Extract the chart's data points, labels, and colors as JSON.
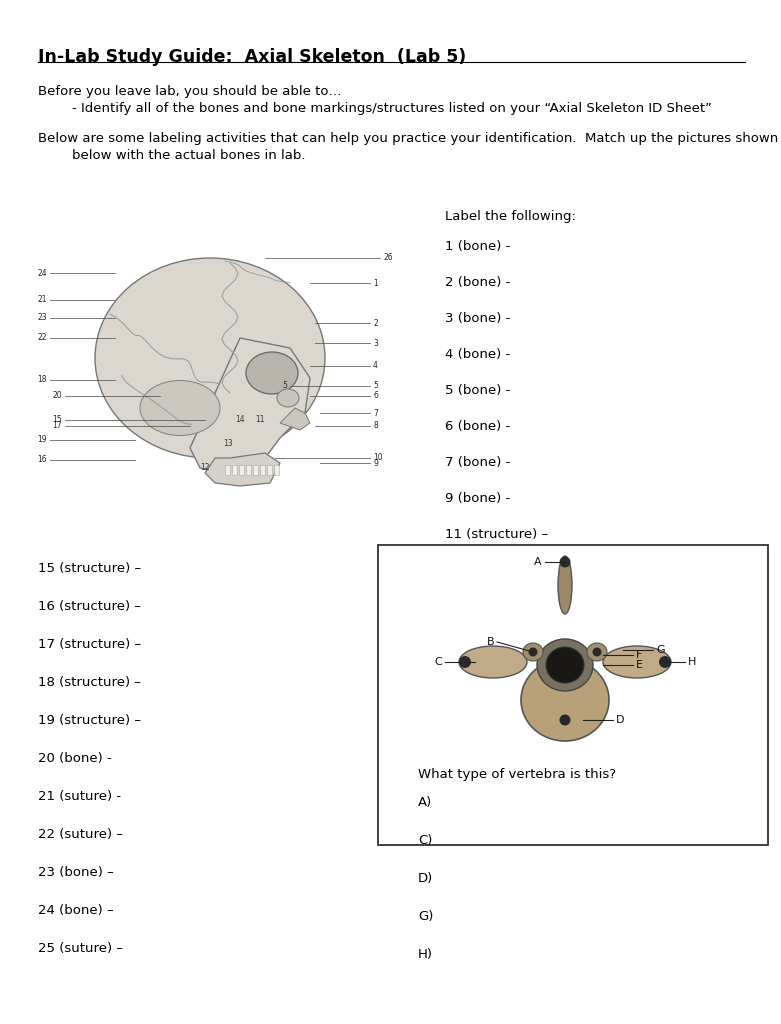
{
  "title": "In-Lab Study Guide:  Axial Skeleton  (Lab 5)",
  "intro_line1": "Before you leave lab, you should be able to…",
  "intro_line2": "        - Identify all of the bones and bone markings/structures listed on your “Axial Skeleton ID Sheet”",
  "intro_line3": "Below are some labeling activities that can help you practice your identification.  Match up the pictures shown",
  "intro_line4": "        below with the actual bones in lab.",
  "label_header": "Label the following:",
  "right_labels": [
    "1 (bone) -",
    "2 (bone) -",
    "3 (bone) -",
    "4 (bone) -",
    "5 (bone) -",
    "6 (bone) -",
    "7 (bone) -",
    "9 (bone) -",
    "11 (structure) –"
  ],
  "left_labels": [
    "15 (structure) –",
    "16 (structure) –",
    "17 (structure) –",
    "18 (structure) –",
    "19 (structure) –",
    "20 (bone) -",
    "21 (suture) -",
    "22 (suture) –",
    "23 (bone) –",
    "24 (bone) –",
    "25 (suture) –"
  ],
  "vertebra_question": "What type of vertebra is this?",
  "vertebra_labels": [
    "A)",
    "C)",
    "D)",
    "G)",
    "H)"
  ],
  "bg_color": "#ffffff",
  "text_color": "#000000"
}
